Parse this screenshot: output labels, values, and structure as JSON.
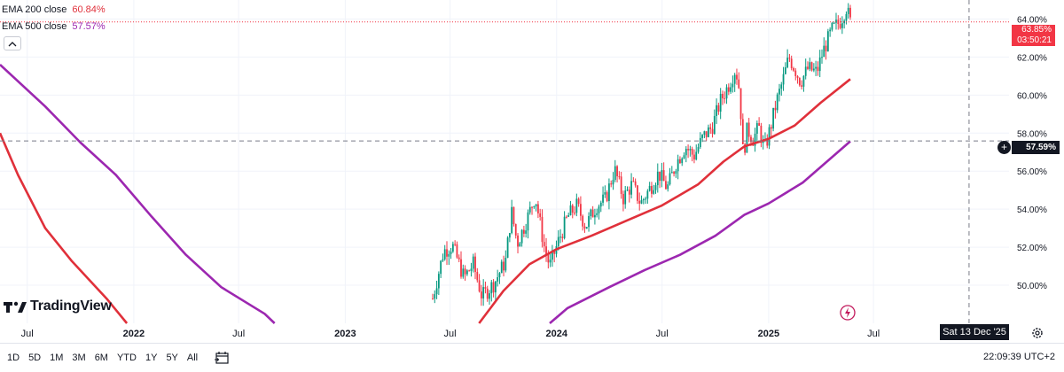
{
  "legend": {
    "ema200_label": "EMA 200 close",
    "ema200_value": "60.84%",
    "ema500_label": "EMA 500 close",
    "ema500_value": "57.57%"
  },
  "badges": {
    "last_price": "63.85%",
    "countdown": "03:50:21",
    "crosshair_price": "57.59%",
    "crosshair_date": "Sat 13 Dec '25"
  },
  "brand": "TradingView",
  "bottom_bar": {
    "ranges": [
      "1D",
      "5D",
      "1M",
      "3M",
      "6M",
      "YTD",
      "1Y",
      "5Y",
      "All"
    ],
    "clock": "22:09:39 UTC+2"
  },
  "colors": {
    "up": "#089981",
    "down": "#f23645",
    "ema200": "#e0303a",
    "ema500": "#9c27b0",
    "price_line": "#f23645"
  },
  "chart_data": {
    "type": "candlestick",
    "y_scale": "percent",
    "ylim": [
      48,
      65
    ],
    "y_ticks": [
      {
        "value": 50,
        "label": "50.00%"
      },
      {
        "value": 52,
        "label": "52.00%"
      },
      {
        "value": 54,
        "label": "54.00%"
      },
      {
        "value": 56,
        "label": "56.00%"
      },
      {
        "value": 58,
        "label": "58.00%"
      },
      {
        "value": 60,
        "label": "60.00%"
      },
      {
        "value": 62,
        "label": "62.00%"
      },
      {
        "value": 64,
        "label": "64.00%"
      }
    ],
    "x_ticks": [
      {
        "date": "2021-07",
        "label": "Jul"
      },
      {
        "date": "2022-01",
        "label": "2022"
      },
      {
        "date": "2022-07",
        "label": "Jul"
      },
      {
        "date": "2023-01",
        "label": "2023"
      },
      {
        "date": "2023-07",
        "label": "Jul"
      },
      {
        "date": "2024-01",
        "label": "2024"
      },
      {
        "date": "2024-07",
        "label": "Jul"
      },
      {
        "date": "2025-01",
        "label": "2025"
      },
      {
        "date": "2025-07",
        "label": "Jul"
      }
    ],
    "xlim": [
      "2021-05-15",
      "2026-02-20"
    ],
    "price_path": [
      [
        "2023-06-01",
        49.3
      ],
      [
        "2023-06-20",
        51.8
      ],
      [
        "2023-07-05",
        52.1
      ],
      [
        "2023-07-25",
        50.4
      ],
      [
        "2023-08-10",
        51.1
      ],
      [
        "2023-08-25",
        49.4
      ],
      [
        "2023-09-15",
        50.1
      ],
      [
        "2023-10-05",
        51.3
      ],
      [
        "2023-10-15",
        53.9
      ],
      [
        "2023-10-25",
        52.2
      ],
      [
        "2023-11-10",
        53.4
      ],
      [
        "2023-11-25",
        54.7
      ],
      [
        "2023-12-10",
        52.1
      ],
      [
        "2023-12-20",
        51.0
      ],
      [
        "2024-01-05",
        52.4
      ],
      [
        "2024-01-20",
        53.6
      ],
      [
        "2024-02-05",
        54.2
      ],
      [
        "2024-02-20",
        53.1
      ],
      [
        "2024-03-10",
        54.2
      ],
      [
        "2024-03-25",
        54.5
      ],
      [
        "2024-04-10",
        56.1
      ],
      [
        "2024-04-25",
        54.6
      ],
      [
        "2024-05-10",
        55.3
      ],
      [
        "2024-05-25",
        54.3
      ],
      [
        "2024-06-10",
        55.1
      ],
      [
        "2024-06-25",
        55.9
      ],
      [
        "2024-07-10",
        55.1
      ],
      [
        "2024-07-25",
        56.4
      ],
      [
        "2024-08-10",
        57.3
      ],
      [
        "2024-08-25",
        56.8
      ],
      [
        "2024-09-10",
        57.8
      ],
      [
        "2024-09-25",
        58.3
      ],
      [
        "2024-10-10",
        59.7
      ],
      [
        "2024-10-25",
        60.6
      ],
      [
        "2024-11-05",
        61.4
      ],
      [
        "2024-11-12",
        60.2
      ],
      [
        "2024-11-18",
        56.8
      ],
      [
        "2024-11-25",
        58.2
      ],
      [
        "2024-12-05",
        57.7
      ],
      [
        "2024-12-15",
        58.3
      ],
      [
        "2024-12-25",
        57.1
      ],
      [
        "2025-01-05",
        58.4
      ],
      [
        "2025-01-15",
        59.7
      ],
      [
        "2025-01-25",
        60.7
      ],
      [
        "2025-02-05",
        62.0
      ],
      [
        "2025-02-15",
        61.4
      ],
      [
        "2025-02-25",
        60.7
      ],
      [
        "2025-03-10",
        61.4
      ],
      [
        "2025-03-25",
        61.2
      ],
      [
        "2025-04-05",
        62.3
      ],
      [
        "2025-04-20",
        63.4
      ],
      [
        "2025-05-05",
        63.9
      ],
      [
        "2025-05-15",
        64.6
      ],
      [
        "2025-05-22",
        63.85
      ]
    ],
    "series": [
      {
        "name": "EMA 200 close",
        "points": [
          [
            "2021-05-15",
            58.0
          ],
          [
            "2021-06-15",
            55.8
          ],
          [
            "2021-08-01",
            53.0
          ],
          [
            "2021-09-15",
            51.3
          ],
          [
            "2021-11-15",
            49.3
          ],
          [
            "2021-12-20",
            48.0
          ],
          [
            "2023-08-20",
            48.0
          ],
          [
            "2023-10-01",
            49.7
          ],
          [
            "2023-11-15",
            51.1
          ],
          [
            "2024-01-01",
            51.9
          ],
          [
            "2024-03-01",
            52.6
          ],
          [
            "2024-05-01",
            53.4
          ],
          [
            "2024-07-01",
            54.2
          ],
          [
            "2024-09-01",
            55.3
          ],
          [
            "2024-10-15",
            56.5
          ],
          [
            "2024-11-20",
            57.3
          ],
          [
            "2025-01-01",
            57.7
          ],
          [
            "2025-02-15",
            58.4
          ],
          [
            "2025-04-01",
            59.6
          ],
          [
            "2025-05-22",
            60.84
          ]
        ]
      },
      {
        "name": "EMA 500 close",
        "points": [
          [
            "2021-05-15",
            61.6
          ],
          [
            "2021-08-01",
            59.4
          ],
          [
            "2021-10-01",
            57.5
          ],
          [
            "2021-12-01",
            55.8
          ],
          [
            "2022-02-01",
            53.6
          ],
          [
            "2022-04-01",
            51.6
          ],
          [
            "2022-06-01",
            49.9
          ],
          [
            "2022-08-15",
            48.5
          ],
          [
            "2022-09-01",
            48.0
          ],
          [
            "2023-12-20",
            48.0
          ],
          [
            "2024-01-20",
            48.8
          ],
          [
            "2024-04-01",
            49.9
          ],
          [
            "2024-06-01",
            50.8
          ],
          [
            "2024-08-01",
            51.6
          ],
          [
            "2024-10-01",
            52.6
          ],
          [
            "2024-11-20",
            53.7
          ],
          [
            "2025-01-01",
            54.3
          ],
          [
            "2025-03-01",
            55.4
          ],
          [
            "2025-05-22",
            57.57
          ]
        ]
      }
    ],
    "last_price": 63.85,
    "crosshair_value": 57.59,
    "crosshair_date": "2025-12-13"
  }
}
